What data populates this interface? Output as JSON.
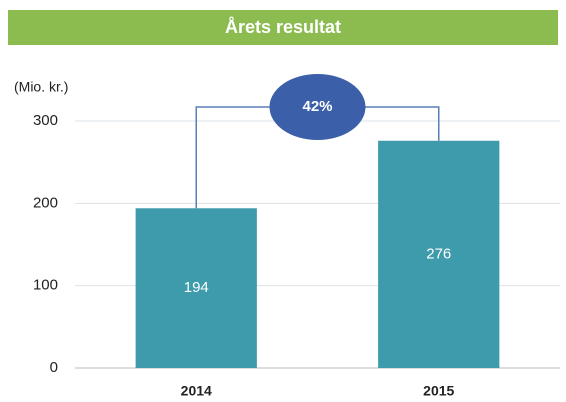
{
  "chart_data": {
    "type": "bar",
    "title": "Årets resultat",
    "y_label": "(Mio. kr.)",
    "categories": [
      "2014",
      "2015"
    ],
    "values": [
      194,
      276
    ],
    "color": "#3e9bab",
    "ylim": [
      0,
      300
    ],
    "yticks": [
      0,
      100,
      200,
      300
    ],
    "grid": true,
    "annotation": "42%",
    "annotation_color": "#3b5fa9",
    "title_color": "#8cbb4f"
  }
}
